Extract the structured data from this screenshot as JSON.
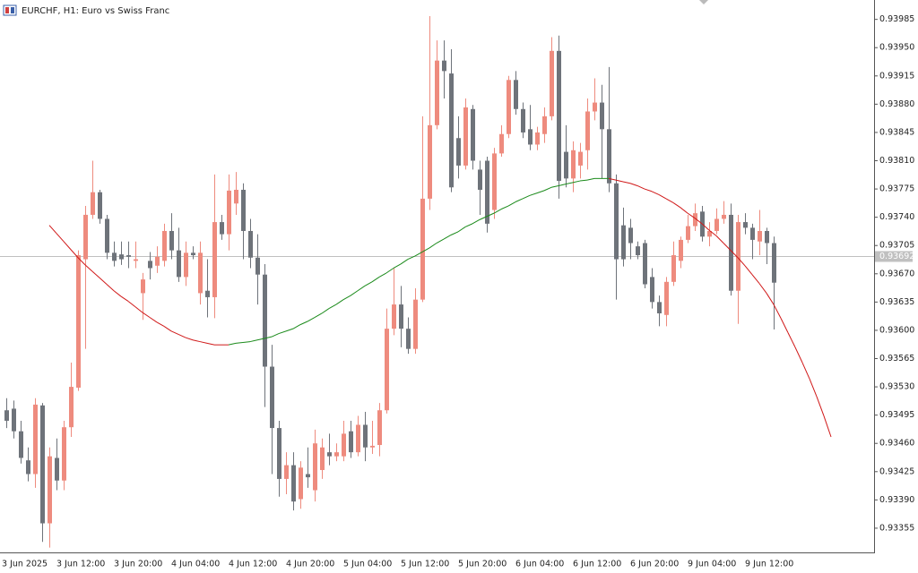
{
  "chart_data": {
    "type": "candlestick",
    "title": "EURCHF, H1:  Euro vs Swiss Franc",
    "categories": [
      "3 Jun 2025",
      null,
      null,
      null,
      null,
      null,
      null,
      "3 Jun 12:00",
      null,
      null,
      null,
      null,
      null,
      null,
      null,
      "3 Jun 20:00",
      null,
      null,
      null,
      null,
      null,
      null,
      null,
      "4 Jun 04:00",
      null,
      null,
      null,
      null,
      null,
      null,
      null,
      "4 Jun 12:00",
      null,
      null,
      null,
      null,
      null,
      null,
      null,
      "4 Jun 20:00",
      null,
      null,
      null,
      null,
      null,
      null,
      null,
      "5 Jun 04:00",
      null,
      null,
      null,
      null,
      null,
      null,
      null,
      "5 Jun 12:00",
      null,
      null,
      null,
      null,
      null,
      null,
      null,
      "5 Jun 20:00",
      null,
      null,
      null,
      null,
      null,
      null,
      null,
      "6 Jun 04:00",
      null,
      null,
      null,
      null,
      null,
      null,
      null,
      "6 Jun 12:00",
      null,
      null,
      null,
      null,
      null,
      null,
      null,
      "6 Jun 20:00",
      null,
      null,
      null,
      null,
      null,
      null,
      null,
      "9 Jun 04:00",
      null,
      null,
      null,
      null,
      null,
      null,
      null,
      "9 Jun 12:00",
      null,
      null,
      null,
      null,
      null,
      null,
      null,
      null,
      null,
      null,
      null,
      null
    ],
    "open": [
      0.93501,
      0.93503,
      0.93475,
      0.93439,
      0.93422,
      0.93507,
      0.93361,
      0.93442,
      0.93414,
      0.9348,
      0.93529,
      0.93688,
      0.93743,
      0.93771,
      0.93738,
      0.93696,
      0.93694,
      0.93693,
      0.93686,
      0.93646,
      0.93686,
      0.9368,
      0.93686,
      0.93723,
      0.93699,
      0.93666,
      0.93696,
      0.93646,
      0.93649,
      0.93641,
      0.93734,
      0.93719,
      0.93757,
      0.93774,
      0.93723,
      0.9369,
      0.93669,
      0.93555,
      0.93479,
      0.93416,
      0.93433,
      0.93391,
      0.93422,
      0.93402,
      0.93427,
      0.93449,
      0.93444,
      0.93444,
      0.93475,
      0.93449,
      0.93483,
      0.93455,
      0.93458,
      0.93501,
      0.93602,
      0.93632,
      0.93602,
      0.93577,
      0.93638,
      0.93763,
      0.93854,
      0.93934,
      0.93918,
      0.93838,
      0.93804,
      0.93874,
      0.93799,
      0.9381,
      0.93749,
      0.93819,
      0.93843,
      0.9391,
      0.93874,
      0.93849,
      0.9383,
      0.93843,
      0.93865,
      0.93946,
      0.93821,
      0.93788,
      0.93804,
      0.93823,
      0.93871,
      0.93882,
      0.93849,
      0.93782,
      0.9373,
      0.93727,
      0.93704,
      0.93708,
      0.93666,
      0.93635,
      0.93619,
      0.9366,
      0.93686,
      0.93712,
      0.93729,
      0.93747,
      0.93716,
      0.93723,
      0.93738,
      0.93743,
      0.93649,
      0.93734,
      0.93727,
      0.9371,
      0.93723,
      0.93708,
      null,
      null,
      null,
      null,
      null,
      null,
      null,
      null
    ],
    "high": [
      0.93516,
      0.93513,
      0.93488,
      0.93455,
      0.93516,
      0.9351,
      0.93455,
      0.93466,
      0.93488,
      0.9356,
      0.93699,
      0.93754,
      0.9381,
      0.93774,
      0.93743,
      0.9371,
      0.9371,
      0.9371,
      0.9371,
      0.93671,
      0.93697,
      0.93704,
      0.93732,
      0.93745,
      0.93727,
      0.9371,
      0.93704,
      0.9371,
      0.93688,
      0.93793,
      0.93743,
      0.93793,
      0.93796,
      0.93782,
      0.93738,
      0.93719,
      0.93682,
      0.93582,
      0.93488,
      0.93449,
      0.93449,
      0.93438,
      0.93455,
      0.93477,
      0.93466,
      0.93472,
      0.9346,
      0.93488,
      0.93488,
      0.93494,
      0.93499,
      0.93488,
      0.9351,
      0.93627,
      0.93677,
      0.93655,
      0.93616,
      0.93652,
      0.93865,
      0.93989,
      0.93959,
      0.93959,
      0.93948,
      0.93865,
      0.93887,
      0.93879,
      0.9381,
      0.93815,
      0.93826,
      0.93854,
      0.93915,
      0.93921,
      0.93882,
      0.93879,
      0.93852,
      0.93876,
      0.93963,
      0.93965,
      0.93854,
      0.93834,
      0.93832,
      0.93887,
      0.93912,
      0.93904,
      0.93926,
      0.93793,
      0.93752,
      0.93738,
      0.9371,
      0.93712,
      0.93677,
      0.93643,
      0.93666,
      0.9371,
      0.93716,
      0.93743,
      0.93757,
      0.93754,
      0.93734,
      0.93751,
      0.9376,
      0.93757,
      0.93743,
      0.93745,
      0.93732,
      0.93749,
      0.93727,
      0.93716,
      null,
      null,
      null,
      null,
      null,
      null,
      null,
      null
    ],
    "low": [
      0.93479,
      0.93466,
      0.93435,
      0.93413,
      0.93405,
      0.93338,
      0.93331,
      0.93402,
      0.93402,
      0.93468,
      0.93525,
      0.93577,
      0.93738,
      0.93732,
      0.93688,
      0.93679,
      0.93681,
      0.93677,
      0.93677,
      0.93613,
      0.93663,
      0.93671,
      0.93679,
      0.93688,
      0.9366,
      0.93655,
      0.93688,
      0.93632,
      0.93616,
      0.93615,
      0.93712,
      0.93699,
      0.93743,
      0.93688,
      0.93677,
      0.93632,
      0.93505,
      0.93422,
      0.93394,
      0.93397,
      0.93377,
      0.93379,
      0.93405,
      0.93388,
      0.93416,
      0.93433,
      0.93438,
      0.93438,
      0.93442,
      0.93444,
      0.93438,
      0.93447,
      0.93444,
      0.93497,
      0.93594,
      0.93579,
      0.93571,
      0.93571,
      0.93635,
      0.93749,
      0.93849,
      0.93887,
      0.93771,
      0.93788,
      0.93799,
      0.93799,
      0.93743,
      0.93721,
      0.93738,
      0.93815,
      0.93838,
      0.93867,
      0.93838,
      0.93823,
      0.93823,
      0.93832,
      0.9386,
      0.93763,
      0.93777,
      0.93771,
      0.93788,
      0.93799,
      0.9386,
      0.93788,
      0.93771,
      0.93638,
      0.93679,
      0.93688,
      0.93688,
      0.93652,
      0.93627,
      0.93605,
      0.93605,
      0.93655,
      0.93677,
      0.93708,
      0.93723,
      0.9371,
      0.93704,
      0.93719,
      0.93732,
      0.93643,
      0.93608,
      0.93719,
      0.93688,
      0.93693,
      0.93682,
      0.93601,
      null,
      null,
      null,
      null,
      null,
      null,
      null,
      null
    ],
    "close": [
      0.93488,
      0.93475,
      0.93442,
      0.93422,
      0.93508,
      0.93361,
      0.93444,
      0.93414,
      0.9348,
      0.9353,
      0.93693,
      0.93743,
      0.93771,
      0.93738,
      0.93696,
      0.93686,
      0.93688,
      0.93691,
      0.93688,
      0.93663,
      0.93677,
      0.93691,
      0.93723,
      0.93699,
      0.93666,
      0.93696,
      0.93693,
      0.93696,
      0.93641,
      0.93734,
      0.93719,
      0.93773,
      0.93774,
      0.93723,
      0.9369,
      0.93669,
      0.93555,
      0.93479,
      0.93416,
      0.93433,
      0.93388,
      0.9343,
      0.93418,
      0.9346,
      0.93455,
      0.93444,
      0.93449,
      0.93472,
      0.93449,
      0.93483,
      0.93455,
      0.93457,
      0.93501,
      0.93602,
      0.93632,
      0.93602,
      0.93577,
      0.93638,
      0.93763,
      0.93854,
      0.93934,
      0.93921,
      0.93777,
      0.93804,
      0.93876,
      0.9381,
      0.93774,
      0.93732,
      0.93819,
      0.93843,
      0.9391,
      0.93874,
      0.93845,
      0.9383,
      0.93845,
      0.93865,
      0.93946,
      0.93785,
      0.93788,
      0.93823,
      0.93821,
      0.93871,
      0.93882,
      0.93849,
      0.93782,
      0.93688,
      0.93688,
      0.93708,
      0.93693,
      0.93657,
      0.93635,
      0.93621,
      0.9366,
      0.93693,
      0.93712,
      0.93729,
      0.93745,
      0.93716,
      0.93723,
      0.93738,
      0.93743,
      0.93649,
      0.93734,
      0.93727,
      0.93712,
      0.93723,
      0.93708,
      0.93659,
      null,
      null,
      null,
      null,
      null,
      null,
      null,
      null
    ],
    "up_color": "#ee8b7e",
    "down_color": "#6e737a",
    "ma": {
      "rising_color": "#1a8a1a",
      "falling_color": "#d01818",
      "values": [
        null,
        null,
        null,
        null,
        null,
        null,
        0.9373,
        0.9372,
        0.9371,
        0.937,
        0.9369,
        0.93681,
        0.93673,
        0.93665,
        0.93657,
        0.93649,
        0.93642,
        0.93636,
        0.93629,
        0.93622,
        0.93616,
        0.9361,
        0.93605,
        0.93599,
        0.93595,
        0.93591,
        0.93588,
        0.93586,
        0.93584,
        0.93582,
        0.93582,
        0.93582,
        0.93584,
        0.93585,
        0.93586,
        0.93588,
        0.9359,
        0.93592,
        0.93596,
        0.93599,
        0.93602,
        0.93607,
        0.93611,
        0.93616,
        0.93621,
        0.93627,
        0.93632,
        0.93638,
        0.93643,
        0.93649,
        0.93655,
        0.9366,
        0.93666,
        0.93671,
        0.93677,
        0.93682,
        0.93688,
        0.93692,
        0.93697,
        0.93702,
        0.93708,
        0.93713,
        0.93718,
        0.93722,
        0.93728,
        0.93732,
        0.93737,
        0.93741,
        0.93745,
        0.9375,
        0.93754,
        0.93759,
        0.93763,
        0.93767,
        0.9377,
        0.93773,
        0.93777,
        0.93779,
        0.93781,
        0.93783,
        0.93785,
        0.93786,
        0.93788,
        0.93788,
        0.93788,
        0.93786,
        0.93784,
        0.93782,
        0.93779,
        0.93775,
        0.93772,
        0.93768,
        0.93763,
        0.93758,
        0.93752,
        0.93745,
        0.93739,
        0.93732,
        0.93724,
        0.93717,
        0.93708,
        0.93699,
        0.9369,
        0.9368,
        0.93669,
        0.93658,
        0.93646,
        0.93632,
        0.93615,
        0.93597,
        0.93579,
        0.9356,
        0.9354,
        0.93518,
        0.93494,
        0.93468
      ]
    },
    "bid": 0.93692,
    "bid_color": "#c0c0c0",
    "ylim": [
      0.93325,
      0.94009
    ],
    "yticks": [
      0.93985,
      {
        "value": 0.9395,
        "label": "0.93950"
      },
      0.93915,
      {
        "value": 0.9388,
        "label": "0.93880"
      },
      0.93845,
      {
        "value": 0.9381,
        "label": "0.93810"
      },
      0.93775,
      {
        "value": 0.9374,
        "label": "0.93740"
      },
      0.93705,
      {
        "value": 0.9367,
        "label": "0.93670"
      },
      0.93635,
      {
        "value": 0.936,
        "label": "0.93600"
      },
      0.93565,
      {
        "value": 0.9353,
        "label": "0.93530"
      },
      0.93495,
      {
        "value": 0.9346,
        "label": "0.93460"
      },
      0.93425,
      {
        "value": 0.9339,
        "label": "0.93390"
      },
      0.93355
    ]
  }
}
